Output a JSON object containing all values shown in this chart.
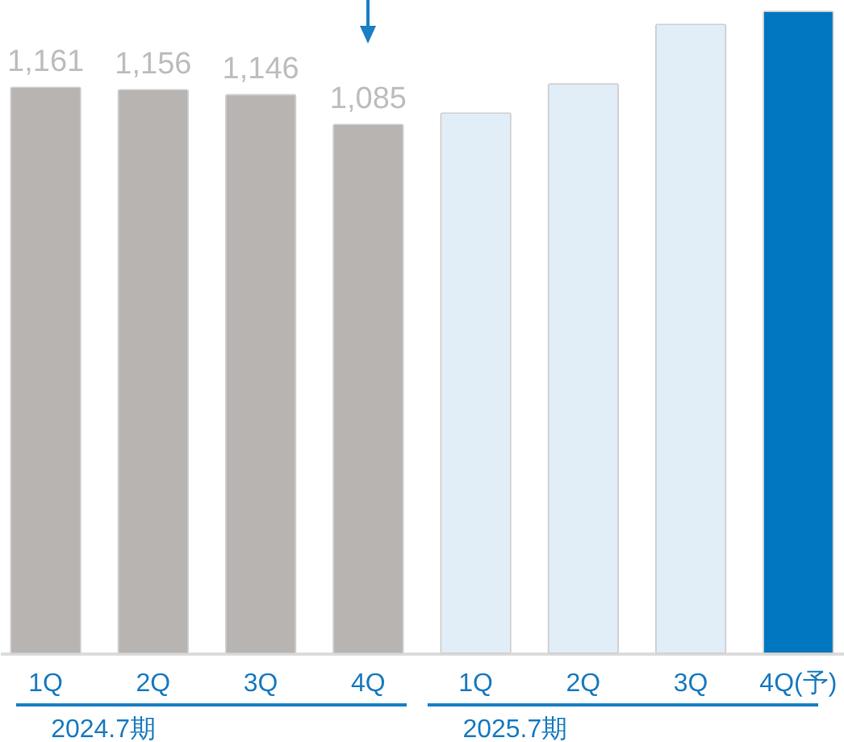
{
  "chart_data": {
    "type": "bar",
    "categories": [
      "1Q",
      "2Q",
      "3Q",
      "4Q",
      "1Q",
      "2Q",
      "3Q",
      "4Q(予)"
    ],
    "values": [
      1161,
      1156,
      1146,
      1085,
      1108,
      1168,
      1290,
      1317
    ],
    "colors": [
      "#b8b4b2",
      "#b8b4b2",
      "#b8b4b2",
      "#b8b4b2",
      "#e1edf7",
      "#e1edf7",
      "#e1edf7",
      "#0077c0"
    ],
    "value_labels": [
      "1,161",
      "1,156",
      "1,146",
      "1,085",
      null,
      null,
      null,
      null
    ],
    "annotations": [
      "2024.7期",
      "2025.7期"
    ]
  }
}
